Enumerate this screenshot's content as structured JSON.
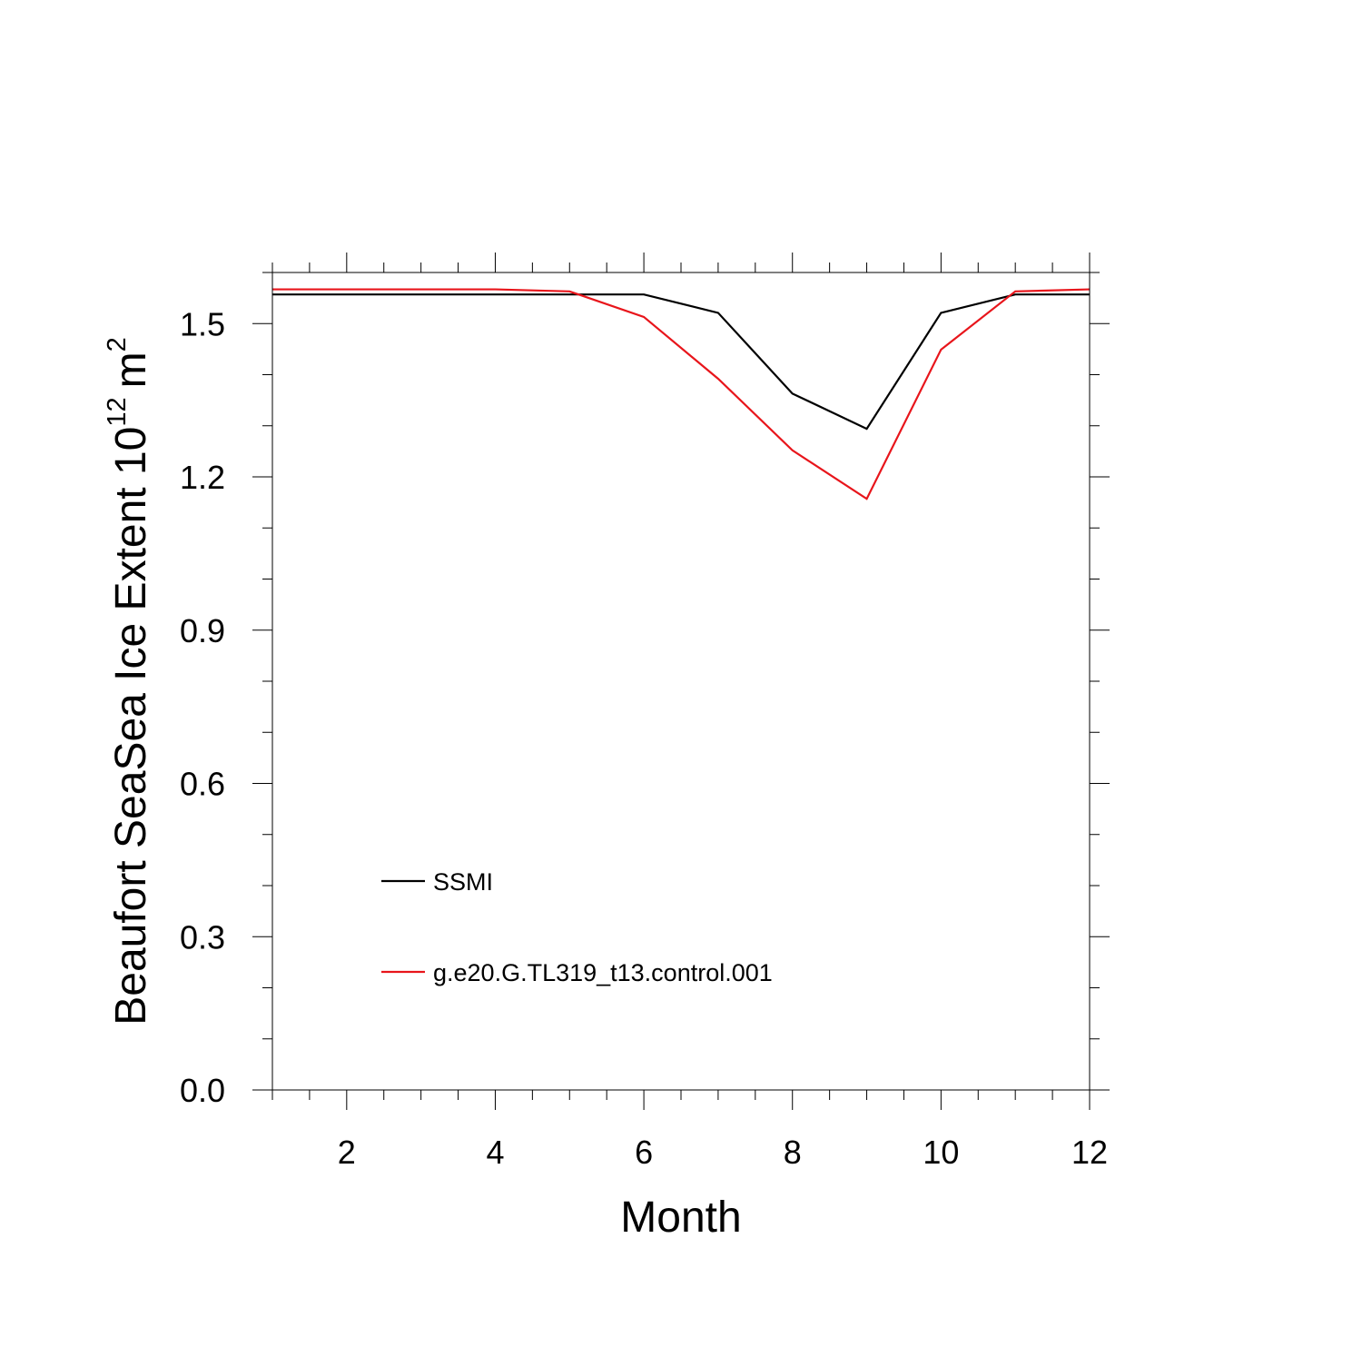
{
  "chart_data": {
    "type": "line",
    "xlabel": "Month",
    "ylabel": {
      "text": "Beaufort SeaSea Ice Extent 10",
      "exponent": "12",
      "unit": "m",
      "unit_exponent": "2"
    },
    "xlim": [
      1,
      12
    ],
    "ylim": [
      0.0,
      1.6
    ],
    "x_ticks": [
      2,
      4,
      6,
      8,
      10,
      12
    ],
    "x_tick_labels": [
      "2",
      "4",
      "6",
      "8",
      "10",
      "12"
    ],
    "y_ticks": [
      0.0,
      0.3,
      0.6,
      0.9,
      1.2,
      1.5
    ],
    "y_tick_labels": [
      "0.0",
      "0.3",
      "0.6",
      "0.9",
      "1.2",
      "1.5"
    ],
    "x_minor_step": 0.5,
    "y_minor_step": 0.1,
    "grid": false,
    "legend_position": "lower-left",
    "x": [
      1,
      2,
      3,
      4,
      5,
      6,
      7,
      8,
      9,
      10,
      11,
      12
    ],
    "series": [
      {
        "name": "SSMI",
        "color": "#000000",
        "values": [
          1.557,
          1.557,
          1.557,
          1.557,
          1.557,
          1.557,
          1.521,
          1.363,
          1.294,
          1.521,
          1.557,
          1.557
        ]
      },
      {
        "name": "g.e20.G.TL319_t13.control.001",
        "color": "#e8151b",
        "values": [
          1.567,
          1.567,
          1.567,
          1.567,
          1.563,
          1.513,
          1.392,
          1.252,
          1.157,
          1.449,
          1.563,
          1.567
        ]
      }
    ]
  }
}
